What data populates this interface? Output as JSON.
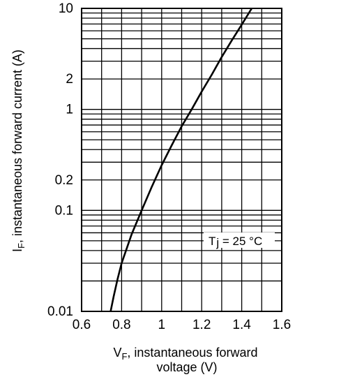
{
  "chart_data": {
    "type": "line",
    "x_scale": "linear",
    "y_scale": "log",
    "xlim": [
      0.6,
      1.6
    ],
    "ylim": [
      0.01,
      10
    ],
    "grid": true,
    "x_ticks": [
      {
        "value": 0.6,
        "label": "0.6"
      },
      {
        "value": 0.8,
        "label": "0.8"
      },
      {
        "value": 1.0,
        "label": "1"
      },
      {
        "value": 1.2,
        "label": "1.2"
      },
      {
        "value": 1.4,
        "label": "1.4"
      },
      {
        "value": 1.6,
        "label": "1.6"
      }
    ],
    "y_ticks": [
      {
        "value": 10,
        "label": "10"
      },
      {
        "value": 2,
        "label": "2"
      },
      {
        "value": 1,
        "label": "1"
      },
      {
        "value": 0.2,
        "label": "0.2"
      },
      {
        "value": 0.1,
        "label": "0.1"
      },
      {
        "value": 0.01,
        "label": "0.01"
      }
    ],
    "xlabel_line1": "V",
    "xlabel_sub": "F",
    "xlabel_line1_rest": ", instantaneous forward",
    "xlabel_line2": "voltage (V)",
    "ylabel_main": "I",
    "ylabel_sub": "F",
    "ylabel_rest": ", instantaneous forward current  (A)",
    "annotation": {
      "text_a": "T",
      "text_b": "j",
      "text_c": " = 25 °C"
    },
    "series": [
      {
        "x": [
          0.745,
          0.76,
          0.78,
          0.8,
          0.85,
          0.9,
          0.95,
          1.0,
          1.05,
          1.1,
          1.15,
          1.2,
          1.25,
          1.3,
          1.35,
          1.4,
          1.45
        ],
        "y": [
          0.01,
          0.014,
          0.021,
          0.03,
          0.058,
          0.1,
          0.17,
          0.28,
          0.44,
          0.68,
          1.0,
          1.5,
          2.2,
          3.3,
          4.8,
          6.9,
          10
        ]
      }
    ]
  }
}
